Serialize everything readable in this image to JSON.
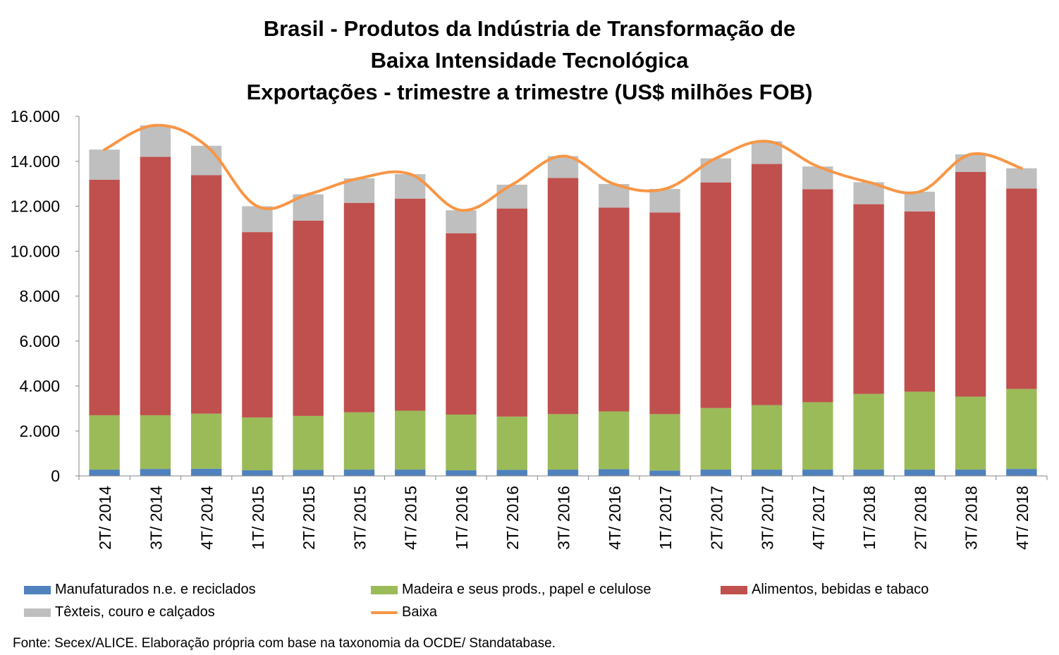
{
  "chart_data": {
    "type": "bar",
    "stacked": true,
    "title_lines": [
      "Brasil - Produtos da Indústria de Transformação de",
      "Baixa Intensidade Tecnológica",
      "Exportações - trimestre a trimestre (US$ milhões FOB)"
    ],
    "categories": [
      "2T/ 2014",
      "3T/ 2014",
      "4T/ 2014",
      "1T/ 2015",
      "2T/ 2015",
      "3T/ 2015",
      "4T/ 2015",
      "1T/ 2016",
      "2T/ 2016",
      "3T/ 2016",
      "4T/ 2016",
      "1T/ 2017",
      "2T/ 2017",
      "3T/ 2017",
      "4T/ 2017",
      "1T/ 2018",
      "2T/ 2018",
      "3T/ 2018",
      "4T/ 2018"
    ],
    "ylim": [
      0,
      16000
    ],
    "yticks": [
      0,
      2000,
      4000,
      6000,
      8000,
      10000,
      12000,
      14000,
      16000
    ],
    "ytick_labels": [
      "0",
      "2.000",
      "4.000",
      "6.000",
      "8.000",
      "10.000",
      "12.000",
      "14.000",
      "16.000"
    ],
    "series": [
      {
        "name": "Manufaturados n.e. e reciclados",
        "color": "#4f81bd",
        "kind": "bar",
        "values": [
          280,
          310,
          320,
          250,
          270,
          280,
          280,
          250,
          270,
          280,
          300,
          240,
          280,
          280,
          280,
          280,
          280,
          280,
          310
        ]
      },
      {
        "name": "Madeira e seus prods., papel e celulose",
        "color": "#9bbb59",
        "kind": "bar",
        "values": [
          2420,
          2390,
          2450,
          2350,
          2400,
          2550,
          2620,
          2480,
          2370,
          2470,
          2570,
          2510,
          2740,
          2870,
          3000,
          3370,
          3470,
          3250,
          3560
        ]
      },
      {
        "name": "Alimentos, bebidas e tabaco",
        "color": "#c0504d",
        "kind": "bar",
        "values": [
          10480,
          11500,
          10610,
          8250,
          8690,
          9320,
          9440,
          8070,
          9260,
          10510,
          9070,
          8970,
          10040,
          10730,
          9480,
          8440,
          8020,
          10000,
          8920
        ]
      },
      {
        "name": "Têxteis, couro e calçados",
        "color": "#bfbfbf",
        "kind": "bar",
        "values": [
          1340,
          1400,
          1310,
          1150,
          1170,
          1090,
          1090,
          1020,
          1060,
          970,
          1050,
          1050,
          1070,
          1010,
          1010,
          980,
          880,
          780,
          900
        ]
      },
      {
        "name": "Baixa",
        "color": "#f79646",
        "kind": "line",
        "values": [
          14520,
          15600,
          14690,
          12000,
          12530,
          13240,
          13430,
          11820,
          12960,
          14230,
          12990,
          12770,
          14130,
          14890,
          13770,
          13070,
          12650,
          14310,
          13690
        ]
      }
    ],
    "source": "Fonte: Secex/ALICE. Elaboração própria com base na taxonomia da OCDE/ Standatabase."
  }
}
